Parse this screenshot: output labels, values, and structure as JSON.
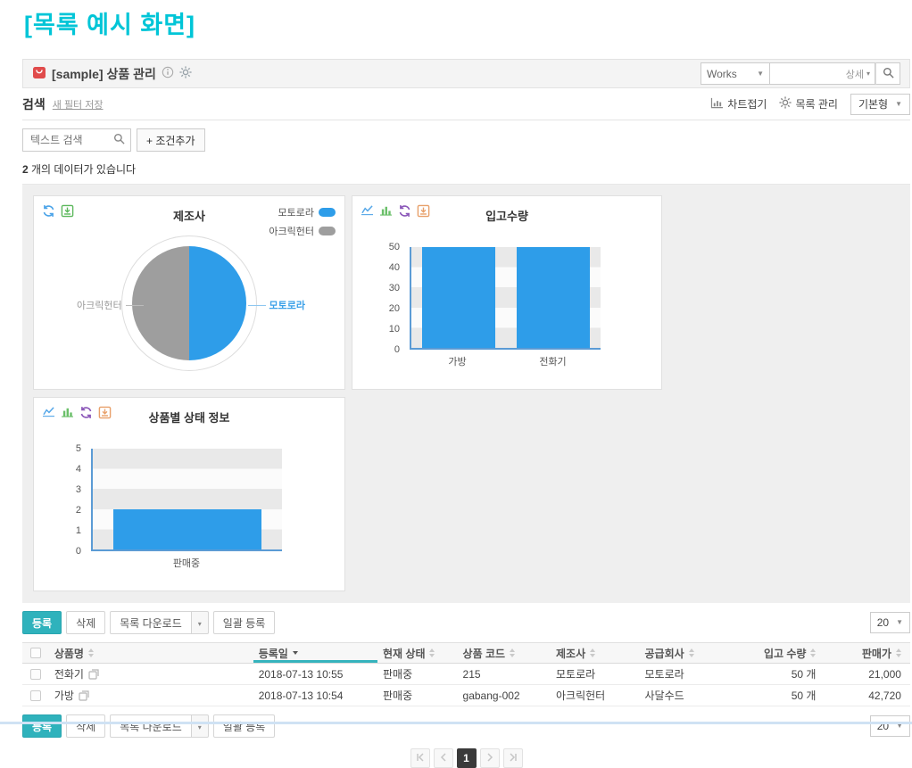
{
  "page_title": "[목록 예시 화면]",
  "app_header": {
    "title": "[sample] 상품 관리",
    "works_label": "Works",
    "search_value": "",
    "search_scope_label": "상세"
  },
  "filter_bar": {
    "search_title": "검색",
    "new_filter_link": "새 필터 저장",
    "chart_collapse_label": "차트접기",
    "list_manage_label": "목록 관리",
    "view_type_value": "기본형"
  },
  "search_row": {
    "text_search_placeholder": "텍스트 검색",
    "add_condition_label": "+ 조건추가"
  },
  "result_count": {
    "count": "2",
    "label": " 개의 데이터가 있습니다"
  },
  "chart_data": [
    {
      "type": "pie",
      "title": "제조사",
      "slices": [
        {
          "label": "모토로라",
          "value": 1,
          "color": "#2e9de9"
        },
        {
          "label": "아크릭헌터",
          "value": 1,
          "color": "#9e9e9e"
        }
      ],
      "legend_position": "top-right"
    },
    {
      "type": "bar",
      "title": "입고수량",
      "categories": [
        "가방",
        "전화기"
      ],
      "values": [
        50,
        50
      ],
      "ylim": [
        0,
        50
      ],
      "yticks": [
        0,
        10,
        20,
        30,
        40,
        50
      ],
      "bar_color": "#2e9de9"
    },
    {
      "type": "bar",
      "title": "상품별 상태 정보",
      "categories": [
        "판매중"
      ],
      "values": [
        2
      ],
      "ylim": [
        0,
        5
      ],
      "yticks": [
        0,
        1,
        2,
        3,
        4,
        5
      ],
      "bar_color": "#2e9de9"
    }
  ],
  "toolbar": {
    "register_label": "등록",
    "delete_label": "삭제",
    "download_label": "목록 다운로드",
    "bulk_register_label": "일괄 등록",
    "page_size": "20"
  },
  "table": {
    "columns": [
      {
        "label": "상품명",
        "sort": "none",
        "align": "left"
      },
      {
        "label": "등록일",
        "sort": "desc",
        "align": "left"
      },
      {
        "label": "현재 상태",
        "sort": "none",
        "align": "left"
      },
      {
        "label": "상품 코드",
        "sort": "none",
        "align": "left"
      },
      {
        "label": "제조사",
        "sort": "none",
        "align": "left"
      },
      {
        "label": "공급회사",
        "sort": "none",
        "align": "left"
      },
      {
        "label": "입고 수량",
        "sort": "none",
        "align": "right"
      },
      {
        "label": "판매가",
        "sort": "none",
        "align": "right"
      }
    ],
    "rows": [
      {
        "cells": [
          "전화기",
          "2018-07-13 10:55",
          "판매중",
          "215",
          "모토로라",
          "모토로라",
          "50 개",
          "21,000"
        ]
      },
      {
        "cells": [
          "가방",
          "2018-07-13 10:54",
          "판매중",
          "gabang-002",
          "아크릭헌터",
          "사달수드",
          "50 개",
          "42,720"
        ]
      }
    ]
  },
  "pagination": {
    "current": "1"
  },
  "icons": {
    "app": "bag-icon",
    "info": "info-circle-icon",
    "settings": "gear-icon",
    "search": "magnifier-icon",
    "chart_collapse": "chart-frame-icon",
    "refresh": "sync-arrows-icon",
    "download": "box-download-icon",
    "line_chart": "line-chart-icon",
    "bar_chart": "bar-chart-icon",
    "doc": "document-icon",
    "sort": "sort-arrows-icon"
  },
  "colors": {
    "title_cyan": "#00c5d7",
    "accent_teal": "#2fb2bc",
    "sort_active_teal": "#35b3bd",
    "chart_blue": "#2e9de9",
    "chart_gray": "#9e9e9e",
    "axis_blue": "#5b9bd5",
    "current_page_bg": "#3a3a3a"
  }
}
